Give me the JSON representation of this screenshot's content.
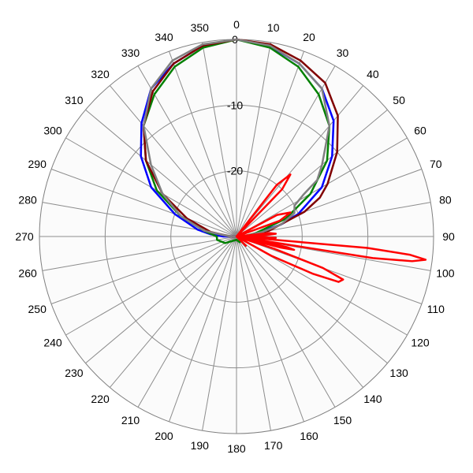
{
  "chart_data": {
    "type": "polar-line",
    "title": "",
    "angle_ticks": [
      "0",
      "10",
      "20",
      "30",
      "40",
      "50",
      "60",
      "70",
      "80",
      "90",
      "100",
      "110",
      "120",
      "130",
      "140",
      "150",
      "160",
      "170",
      "180",
      "190",
      "200",
      "210",
      "220",
      "230",
      "240",
      "250",
      "260",
      "270",
      "280",
      "290",
      "300",
      "310",
      "320",
      "330",
      "340",
      "350"
    ],
    "radial_ticks": [
      "0",
      "-10",
      "-20"
    ],
    "r_range": [
      -30,
      0
    ],
    "angle_direction": "clockwise",
    "zero_at": "top",
    "grid": true,
    "legend": "none",
    "series": [
      {
        "color": "#0000ff",
        "points": [
          [
            0,
            0
          ],
          [
            10,
            -0.6
          ],
          [
            20,
            -2
          ],
          [
            30,
            -4
          ],
          [
            40,
            -7
          ],
          [
            50,
            -11
          ],
          [
            60,
            -15
          ],
          [
            70,
            -20
          ],
          [
            75,
            -23
          ],
          [
            80,
            -27
          ],
          [
            85,
            -28
          ],
          [
            90,
            -29.5
          ],
          [
            270,
            -28
          ],
          [
            275,
            -26
          ],
          [
            280,
            -24
          ],
          [
            290,
            -20
          ],
          [
            300,
            -15
          ],
          [
            310,
            -11
          ],
          [
            320,
            -7.5
          ],
          [
            330,
            -4
          ],
          [
            340,
            -2
          ],
          [
            350,
            -0.5
          ],
          [
            360,
            0
          ]
        ]
      },
      {
        "color": "#008000",
        "points": [
          [
            0,
            0
          ],
          [
            10,
            -0.8
          ],
          [
            20,
            -2.5
          ],
          [
            30,
            -5
          ],
          [
            40,
            -8
          ],
          [
            50,
            -12
          ],
          [
            60,
            -17
          ],
          [
            70,
            -22
          ],
          [
            80,
            -27
          ],
          [
            90,
            -29
          ],
          [
            150,
            -29
          ],
          [
            180,
            -29.5
          ],
          [
            240,
            -28
          ],
          [
            260,
            -27
          ],
          [
            270,
            -27
          ],
          [
            280,
            -25
          ],
          [
            290,
            -21
          ],
          [
            300,
            -16
          ],
          [
            310,
            -12
          ],
          [
            320,
            -8
          ],
          [
            330,
            -5
          ],
          [
            340,
            -2.5
          ],
          [
            350,
            -0.8
          ],
          [
            360,
            0
          ]
        ]
      },
      {
        "color": "#800000",
        "points": [
          [
            0,
            0
          ],
          [
            10,
            -0.3
          ],
          [
            20,
            -1.5
          ],
          [
            30,
            -3
          ],
          [
            40,
            -6
          ],
          [
            50,
            -10
          ],
          [
            60,
            -14
          ],
          [
            65,
            -16
          ],
          [
            70,
            -19
          ],
          [
            80,
            -25
          ],
          [
            90,
            -29
          ],
          [
            270,
            -29
          ],
          [
            280,
            -26
          ],
          [
            290,
            -22
          ],
          [
            300,
            -17
          ],
          [
            310,
            -12
          ],
          [
            320,
            -8
          ],
          [
            330,
            -4.5
          ],
          [
            340,
            -2
          ],
          [
            350,
            -0.5
          ],
          [
            360,
            0
          ]
        ]
      },
      {
        "color": "#808080",
        "points": [
          [
            0,
            0
          ],
          [
            10,
            -0.5
          ],
          [
            20,
            -2
          ],
          [
            30,
            -4
          ],
          [
            40,
            -8
          ],
          [
            50,
            -13
          ],
          [
            55,
            -15
          ],
          [
            58,
            -18
          ],
          [
            62,
            -20
          ],
          [
            68,
            -20.5
          ],
          [
            75,
            -23
          ],
          [
            80,
            -26
          ],
          [
            90,
            -29
          ],
          [
            270,
            -29
          ],
          [
            280,
            -25
          ],
          [
            290,
            -21
          ],
          [
            300,
            -17
          ],
          [
            310,
            -13
          ],
          [
            320,
            -8
          ],
          [
            330,
            -4
          ],
          [
            340,
            -1.5
          ],
          [
            350,
            -0.3
          ],
          [
            360,
            0
          ]
        ]
      },
      {
        "color": "#ff0000",
        "points": [
          [
            34,
            -30
          ],
          [
            38,
            -20
          ],
          [
            41,
            -17.5
          ],
          [
            44,
            -20
          ],
          [
            48,
            -30
          ],
          [
            55,
            -30
          ],
          [
            62,
            -23
          ],
          [
            66,
            -21
          ],
          [
            70,
            -23
          ],
          [
            74,
            -30
          ],
          [
            80,
            -30
          ],
          [
            84,
            -25
          ],
          [
            86,
            -24
          ],
          [
            88,
            -26
          ],
          [
            90,
            -30
          ],
          [
            91,
            -27
          ],
          [
            92,
            -24
          ],
          [
            93,
            -27
          ],
          [
            94,
            -30
          ],
          [
            95,
            -10
          ],
          [
            96,
            -3.5
          ],
          [
            97,
            -1
          ],
          [
            98,
            -3
          ],
          [
            99,
            -9
          ],
          [
            100,
            -30
          ],
          [
            101,
            -25
          ],
          [
            102,
            -22
          ],
          [
            103,
            -21
          ],
          [
            104,
            -23
          ],
          [
            105,
            -30
          ],
          [
            108,
            -24
          ],
          [
            110,
            -16
          ],
          [
            112,
            -12.5
          ],
          [
            114,
            -13
          ],
          [
            116,
            -17
          ],
          [
            119,
            -24
          ],
          [
            122,
            -30
          ],
          [
            130,
            -30
          ],
          [
            135,
            -28
          ],
          [
            140,
            -30
          ],
          [
            150,
            -30
          ],
          [
            160,
            -30
          ],
          [
            170,
            -30
          ],
          [
            180,
            -30
          ],
          [
            360,
            -30
          ]
        ]
      }
    ]
  }
}
